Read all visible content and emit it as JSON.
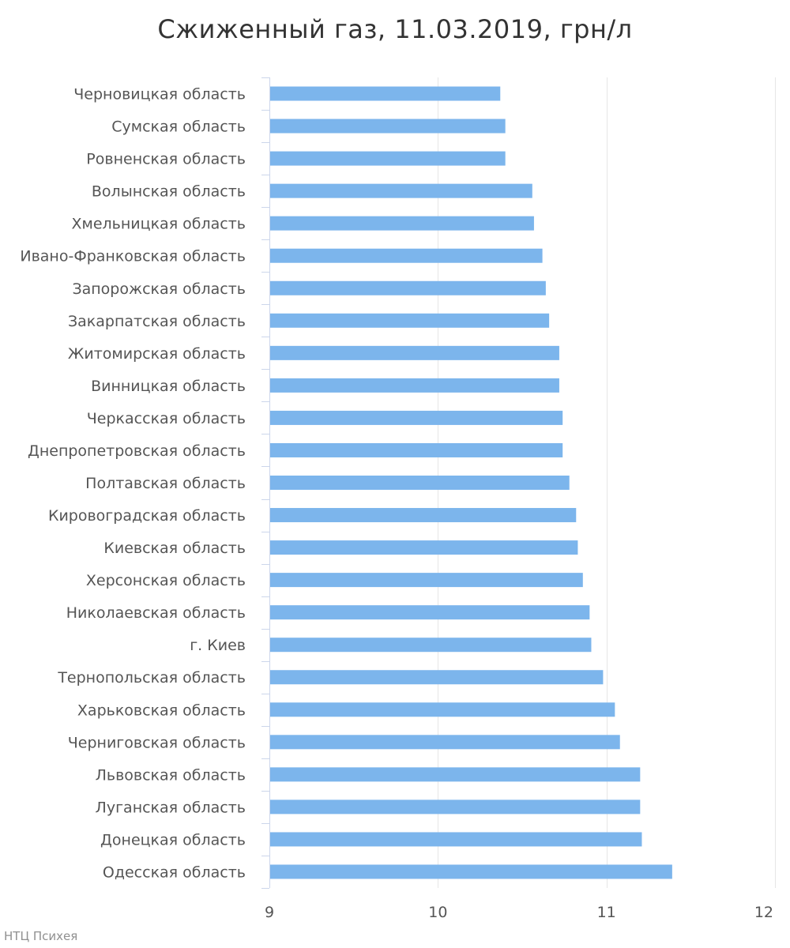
{
  "chart_data": {
    "type": "bar",
    "orientation": "horizontal",
    "title": "Сжиженный газ, 11.03.2019, грн/л",
    "xlabel": "",
    "ylabel": "",
    "xlim": [
      9,
      12
    ],
    "xticks": [
      9,
      10,
      11,
      12
    ],
    "grid": true,
    "legend": "none",
    "bar_color": "#7cb5ec",
    "categories": [
      "Черновицкая область",
      "Сумская область",
      "Ровненская область",
      "Волынская область",
      "Хмельницкая область",
      "Ивано-Франковская область",
      "Запорожская область",
      "Закарпатская область",
      "Житомирская область",
      "Винницкая область",
      "Черкасская область",
      "Днепропетровская область",
      "Полтавская область",
      "Кировоградская область",
      "Киевская область",
      "Херсонская область",
      "Николаевская область",
      "г. Киев",
      "Тернопольская область",
      "Харьковская область",
      "Черниговская область",
      "Львовская область",
      "Луганская область",
      "Донецкая область",
      "Одесская область"
    ],
    "values": [
      10.37,
      10.4,
      10.4,
      10.56,
      10.57,
      10.62,
      10.64,
      10.66,
      10.72,
      10.72,
      10.74,
      10.74,
      10.78,
      10.82,
      10.83,
      10.86,
      10.9,
      10.91,
      10.98,
      11.05,
      11.08,
      11.2,
      11.2,
      11.21,
      11.39
    ]
  },
  "credit": "НТЦ Психея"
}
